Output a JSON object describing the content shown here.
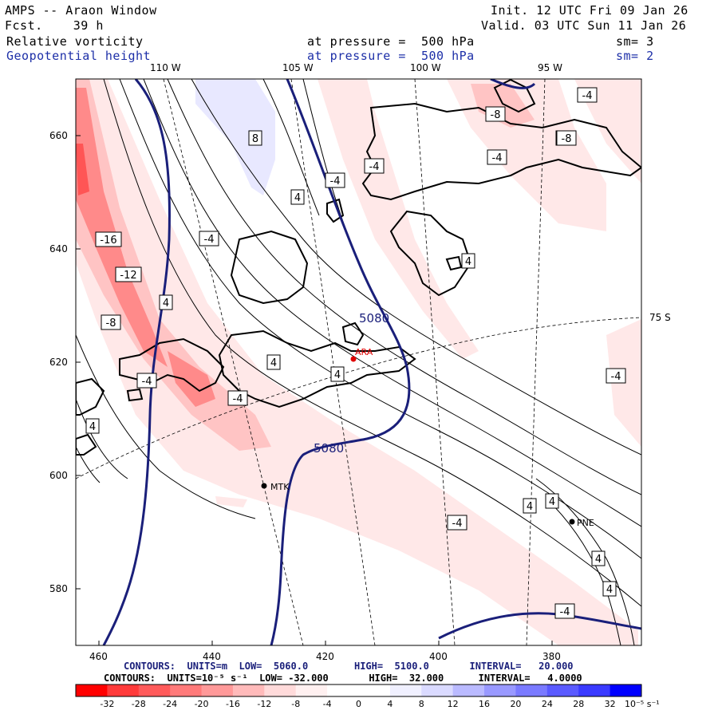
{
  "header": {
    "left": [
      "AMPS -- Araon Window",
      "Fcst.    39 h"
    ],
    "right": [
      "Init. 12 UTC Fri 09 Jan 26",
      "Valid. 03 UTC Sun 11 Jan 26"
    ],
    "field1": {
      "name": "Relative vorticity",
      "pressure": "at pressure =  500 hPa",
      "sm": "sm= 3"
    },
    "field2": {
      "name": "Geopotential height",
      "pressure": "at pressure =  500 hPa",
      "sm": "sm= 2"
    }
  },
  "map": {
    "lon_labels": [
      "110 W",
      "105 W",
      "100 W",
      "95 W"
    ],
    "lat_label": "75 S",
    "y_ticks": [
      "660",
      "640",
      "620",
      "600",
      "580"
    ],
    "x_ticks": [
      "460",
      "440",
      "420",
      "400",
      "380"
    ],
    "stations": [
      {
        "code": "ARA",
        "color": "#e00000"
      },
      {
        "code": "MTK",
        "color": "#000000"
      },
      {
        "code": "PNE",
        "color": "#000000"
      }
    ],
    "height_labels": [
      "5080",
      "5080"
    ],
    "vort_labels": [
      "-16",
      "-12",
      "-8",
      "-4",
      "-4",
      "-4",
      "-4",
      "-4",
      "-4",
      "-4",
      "-4",
      "-4",
      "-4",
      "-4",
      "-8",
      "-8",
      "4",
      "4",
      "4",
      "4",
      "4",
      "4",
      "4",
      "4",
      "4",
      "4",
      "8"
    ]
  },
  "footer": {
    "line1": "CONTOURS:  UNITS=m  LOW=  5060.0        HIGH=  5100.0       INTERVAL=   20.000",
    "line2": "CONTOURS:  UNITS=10⁻⁵ s⁻¹  LOW= -32.000       HIGH=  32.000      INTERVAL=   4.0000"
  },
  "colorbar": {
    "labels": [
      "-32",
      "-28",
      "-24",
      "-20",
      "-16",
      "-12",
      "-8",
      "-4",
      "0",
      "4",
      "8",
      "12",
      "16",
      "20",
      "24",
      "28",
      "32"
    ],
    "units": "10⁻⁵ s⁻¹",
    "colors": [
      "#ff0000",
      "#ff3a3a",
      "#ff5a5a",
      "#ff7a7a",
      "#ff9999",
      "#ffbaba",
      "#ffdada",
      "#fff0f0",
      "#ffffff",
      "#ffffff",
      "#f0f0ff",
      "#dadaff",
      "#babaff",
      "#9999ff",
      "#7a7aff",
      "#5a5aff",
      "#3a3aff",
      "#0000ff"
    ]
  }
}
